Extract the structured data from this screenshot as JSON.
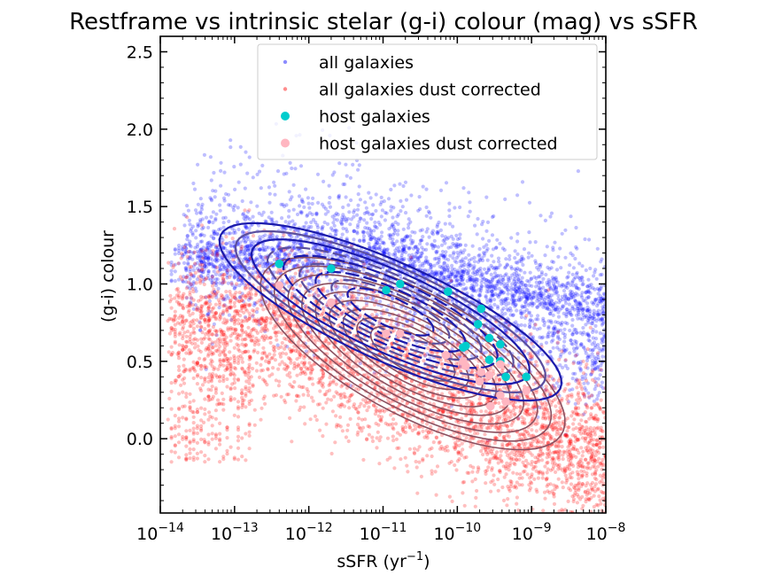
{
  "chart_data": {
    "type": "scatter",
    "title": "Restframe vs intrinsic stelar (g-i) colour (mag) vs sSFR",
    "xlabel": "sSFR (yr",
    "xlabel_exp": "−1",
    "xlabel_close": ")",
    "ylabel": "(g-i) colour",
    "xscale": "log",
    "xlim": [
      1e-14,
      1e-08
    ],
    "ylim": [
      -0.48,
      2.6
    ],
    "x_ticks": [
      {
        "value": 1e-14,
        "base": "10",
        "exp": "−14"
      },
      {
        "value": 1e-13,
        "base": "10",
        "exp": "−13"
      },
      {
        "value": 1e-12,
        "base": "10",
        "exp": "−12"
      },
      {
        "value": 1e-11,
        "base": "10",
        "exp": "−11"
      },
      {
        "value": 1e-10,
        "base": "10",
        "exp": "−10"
      },
      {
        "value": 1e-09,
        "base": "10",
        "exp": "−9"
      },
      {
        "value": 1e-08,
        "base": "10",
        "exp": "−8"
      }
    ],
    "y_ticks": [
      {
        "value": 0.0,
        "label": "0.0"
      },
      {
        "value": 0.5,
        "label": "0.5"
      },
      {
        "value": 1.0,
        "label": "1.0"
      },
      {
        "value": 1.5,
        "label": "1.5"
      },
      {
        "value": 2.0,
        "label": "2.0"
      },
      {
        "value": 2.5,
        "label": "2.5"
      }
    ],
    "legend_position": "top-right",
    "series": [
      {
        "name": "all galaxies",
        "color": "#0000ff",
        "marker": "small-dot",
        "opacity": 0.25,
        "kind": "cloud"
      },
      {
        "name": "all galaxies dust corrected",
        "color": "#ff0000",
        "marker": "small-dot",
        "opacity": 0.25,
        "kind": "cloud"
      },
      {
        "name": "host galaxies",
        "color": "#00cdcd",
        "marker": "dot",
        "points": [
          [
            4e-13,
            1.13
          ],
          [
            2e-12,
            1.1
          ],
          [
            1.1e-11,
            0.96
          ],
          [
            1.7e-11,
            1.0
          ],
          [
            7.5e-11,
            0.95
          ],
          [
            2.1e-10,
            0.84
          ],
          [
            1.9e-10,
            0.74
          ],
          [
            2.7e-10,
            0.65
          ],
          [
            3.8e-10,
            0.61
          ],
          [
            1.3e-10,
            0.6
          ],
          [
            1.2e-10,
            0.59
          ],
          [
            2.7e-10,
            0.51
          ],
          [
            3.8e-10,
            0.5
          ],
          [
            4.5e-10,
            0.4
          ],
          [
            8.5e-10,
            0.4
          ]
        ]
      },
      {
        "name": "host galaxies dust corrected",
        "color": "#ffb6c1",
        "marker": "dot",
        "points": [
          [
            4e-13,
            0.99
          ],
          [
            2e-12,
            0.88
          ],
          [
            1.1e-11,
            0.68
          ],
          [
            1.7e-11,
            0.68
          ],
          [
            7e-11,
            0.54
          ],
          [
            1.2e-10,
            0.5
          ],
          [
            1.3e-10,
            0.47
          ],
          [
            3.8e-10,
            0.48
          ],
          [
            2.1e-10,
            0.43
          ],
          [
            2.7e-10,
            0.41
          ],
          [
            2e-10,
            0.37
          ],
          [
            8.5e-10,
            0.31
          ],
          [
            3.8e-10,
            0.28
          ],
          [
            4.5e-10,
            0.24
          ],
          [
            2.8e-10,
            0.21
          ]
        ]
      }
    ],
    "contour_colors": [
      "#1a1aaa",
      "#5a4e9e",
      "#8b5060"
    ]
  }
}
